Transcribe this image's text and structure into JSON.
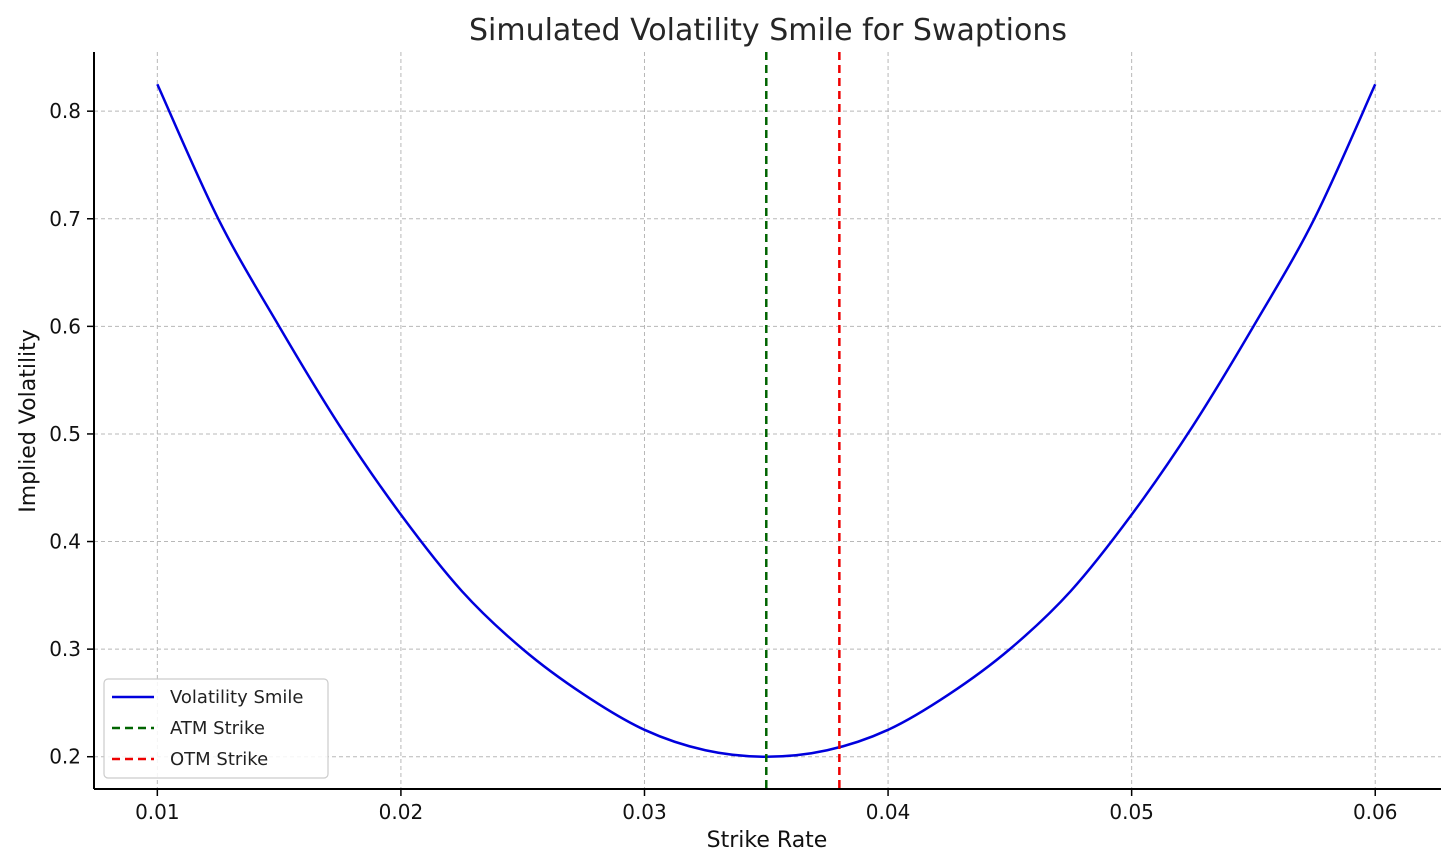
{
  "chart_data": {
    "type": "line",
    "title": "Simulated Volatility Smile for Swaptions",
    "xlabel": "Strike Rate",
    "ylabel": "Implied Volatility",
    "xlim": [
      0.0074,
      0.0627
    ],
    "ylim": [
      0.17,
      0.855
    ],
    "xticks": [
      0.01,
      0.02,
      0.03,
      0.04,
      0.05,
      0.06
    ],
    "xtick_labels": [
      "0.01",
      "0.02",
      "0.03",
      "0.04",
      "0.05",
      "0.06"
    ],
    "yticks": [
      0.2,
      0.3,
      0.4,
      0.5,
      0.6,
      0.7,
      0.8
    ],
    "ytick_labels": [
      "0.2",
      "0.3",
      "0.4",
      "0.5",
      "0.6",
      "0.7",
      "0.8"
    ],
    "grid": true,
    "legend_position": "lower-left",
    "series": [
      {
        "name": "Volatility Smile",
        "color": "#0000dd",
        "style": "solid",
        "x": [
          0.01,
          0.0125,
          0.015,
          0.0175,
          0.02,
          0.0225,
          0.025,
          0.0275,
          0.03,
          0.0325,
          0.035,
          0.0375,
          0.04,
          0.0425,
          0.045,
          0.0475,
          0.05,
          0.0525,
          0.055,
          0.0575,
          0.06
        ],
        "y": [
          0.825,
          0.7,
          0.6,
          0.507,
          0.425,
          0.354,
          0.3,
          0.258,
          0.225,
          0.206,
          0.2,
          0.206,
          0.225,
          0.258,
          0.3,
          0.354,
          0.425,
          0.507,
          0.6,
          0.7,
          0.825
        ]
      }
    ],
    "vlines": [
      {
        "name": "ATM Strike",
        "x": 0.035,
        "color": "#006400",
        "style": "dashed"
      },
      {
        "name": "OTM Strike",
        "x": 0.038,
        "color": "#ee0000",
        "style": "dashed"
      }
    ],
    "legend": [
      "Volatility Smile",
      "ATM Strike",
      "OTM Strike"
    ]
  }
}
